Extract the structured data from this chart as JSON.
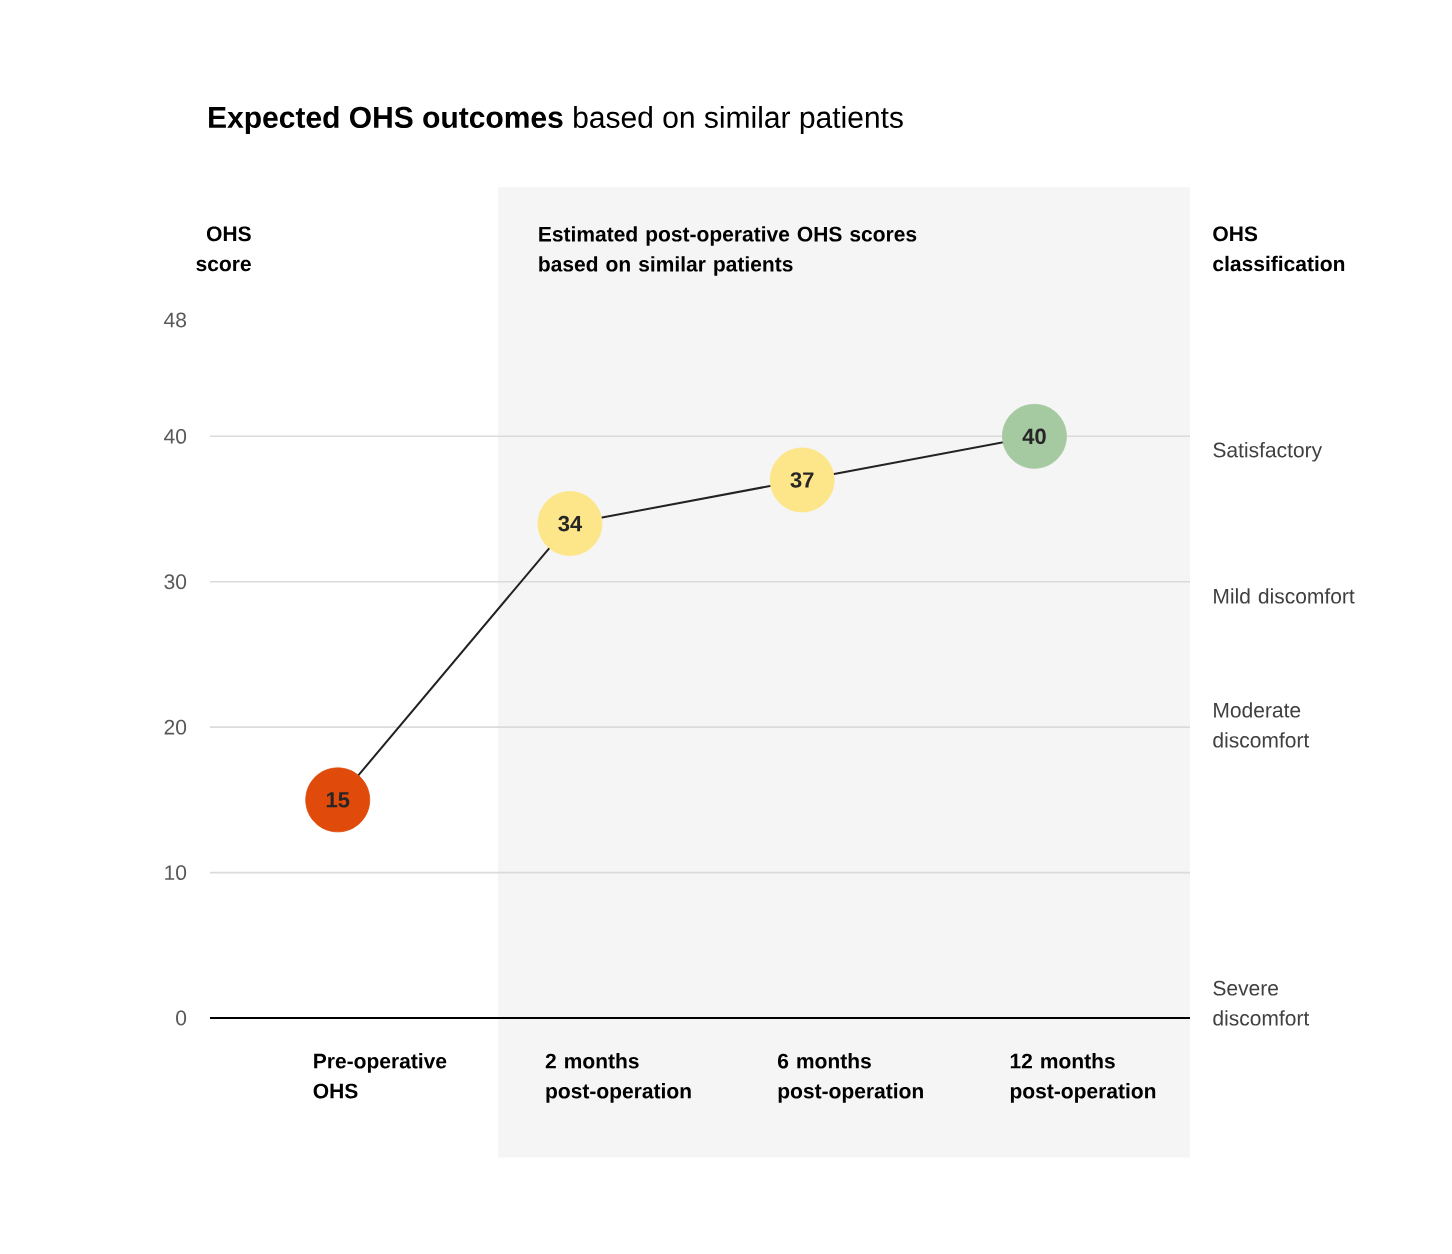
{
  "chart_data": {
    "type": "line",
    "title": "**Expected OHS outcomes** based on similar patients",
    "ylabel": "OHS score",
    "y2label": "OHS classification",
    "categories": [
      "Pre-operative OHS",
      "2 months post-operation",
      "6 months post-operation",
      "12 months post-operation"
    ],
    "values": [
      15,
      34,
      37,
      40
    ],
    "colors": [
      "#e04a0a",
      "#fde68a",
      "#fde68a",
      "#a5c9a0"
    ],
    "color": "#222222",
    "marker": "circle",
    "line_style": "solid",
    "data_labels": true,
    "grid": "y",
    "ylim": [
      0,
      48
    ],
    "yticks": [
      0,
      10,
      20,
      30,
      40,
      48
    ],
    "annotations": [
      "Satisfactory",
      "Mild discomfort",
      "Moderate discomfort",
      "Severe discomfort"
    ],
    "bands": [
      {
        "axis": "x",
        "from": "2 months post-operation",
        "to": "12 months post-operation",
        "label": "Estimated post-operative OHS scores based on similar patients",
        "color": "#f5f5f5"
      }
    ]
  }
}
